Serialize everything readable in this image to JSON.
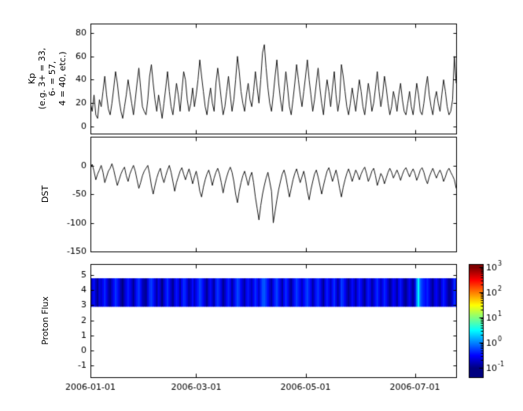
{
  "figure": {
    "background": "#ffffff",
    "x_tick_labels": [
      "2006-01-01",
      "2006-03-01",
      "2006-05-01",
      "2006-07-01"
    ],
    "x_tick_days": [
      0,
      59,
      120,
      181
    ],
    "x_range_days": [
      0,
      204
    ],
    "line_color": "#000000",
    "axis_color": "#000000"
  },
  "chart_data": [
    {
      "type": "line",
      "name": "kp-index",
      "ylabel": "Kp\n(e.g. 3+ = 33,\n6- = 57,\n4 = 40, etc.)",
      "ylim": [
        -6,
        88
      ],
      "yticks": [
        0,
        20,
        40,
        60,
        80
      ],
      "x_start": "2006-01-01",
      "x_end": "2006-07-24",
      "values": [
        20,
        13,
        27,
        10,
        7,
        23,
        17,
        30,
        43,
        27,
        15,
        10,
        20,
        33,
        47,
        37,
        23,
        13,
        7,
        17,
        27,
        40,
        30,
        20,
        10,
        23,
        37,
        50,
        33,
        17,
        13,
        10,
        23,
        43,
        53,
        37,
        23,
        13,
        27,
        17,
        7,
        20,
        33,
        47,
        30,
        17,
        10,
        23,
        37,
        27,
        13,
        30,
        47,
        40,
        23,
        13,
        20,
        33,
        17,
        27,
        40,
        57,
        43,
        30,
        17,
        10,
        23,
        33,
        20,
        13,
        37,
        50,
        37,
        23,
        10,
        17,
        30,
        43,
        27,
        13,
        23,
        40,
        60,
        47,
        30,
        20,
        13,
        27,
        37,
        23,
        17,
        30,
        47,
        33,
        20,
        40,
        63,
        70,
        50,
        33,
        20,
        13,
        27,
        43,
        57,
        37,
        23,
        13,
        30,
        47,
        33,
        17,
        10,
        23,
        37,
        53,
        40,
        27,
        17,
        30,
        43,
        57,
        40,
        27,
        13,
        23,
        37,
        50,
        33,
        20,
        10,
        27,
        40,
        30,
        17,
        33,
        47,
        27,
        13,
        23,
        53,
        43,
        30,
        17,
        10,
        20,
        33,
        23,
        13,
        27,
        40,
        30,
        17,
        10,
        23,
        37,
        27,
        13,
        20,
        33,
        47,
        30,
        17,
        27,
        43,
        33,
        20,
        10,
        17,
        30,
        23,
        13,
        27,
        37,
        23,
        13,
        10,
        20,
        30,
        17,
        10,
        23,
        37,
        27,
        13,
        10,
        20,
        33,
        43,
        27,
        17,
        10,
        23,
        30,
        20,
        13,
        27,
        40,
        30,
        17,
        10,
        13,
        23,
        60,
        37
      ]
    },
    {
      "type": "line",
      "name": "dst-index",
      "ylabel": "DST",
      "ylim": [
        -150,
        50
      ],
      "yticks": [
        0,
        -50,
        -100,
        -150
      ],
      "values": [
        -5,
        2,
        -10,
        -25,
        -15,
        -8,
        0,
        -12,
        -30,
        -20,
        -10,
        -5,
        3,
        -8,
        -22,
        -35,
        -25,
        -15,
        -8,
        -3,
        -18,
        -28,
        -15,
        -7,
        0,
        -10,
        -25,
        -40,
        -30,
        -18,
        -10,
        -5,
        0,
        -15,
        -35,
        -50,
        -35,
        -22,
        -12,
        -5,
        -20,
        -30,
        -18,
        -8,
        0,
        -12,
        -28,
        -45,
        -30,
        -20,
        -10,
        -4,
        -15,
        -25,
        -15,
        -6,
        -18,
        -32,
        -20,
        -10,
        -25,
        -45,
        -55,
        -38,
        -25,
        -15,
        -8,
        -20,
        -35,
        -22,
        -12,
        -5,
        -15,
        -30,
        -48,
        -32,
        -20,
        -10,
        -3,
        -12,
        -28,
        -50,
        -65,
        -45,
        -30,
        -18,
        -10,
        -22,
        -35,
        -20,
        -12,
        -30,
        -55,
        -75,
        -95,
        -70,
        -50,
        -35,
        -22,
        -12,
        -28,
        -45,
        -100,
        -80,
        -60,
        -42,
        -28,
        -15,
        -8,
        -20,
        -38,
        -55,
        -40,
        -25,
        -14,
        -6,
        -18,
        -30,
        -20,
        -10,
        -25,
        -45,
        -60,
        -42,
        -28,
        -15,
        -8,
        -20,
        -35,
        -50,
        -35,
        -22,
        -10,
        -4,
        -15,
        -28,
        -18,
        -8,
        -22,
        -40,
        -55,
        -38,
        -25,
        -14,
        -6,
        -16,
        -28,
        -18,
        -8,
        -15,
        -25,
        -15,
        -8,
        -3,
        -14,
        -28,
        -20,
        -10,
        -5,
        -18,
        -35,
        -25,
        -14,
        -20,
        -32,
        -22,
        -12,
        -5,
        -12,
        -22,
        -15,
        -8,
        -16,
        -26,
        -16,
        -8,
        -4,
        -12,
        -20,
        -12,
        -6,
        -14,
        -26,
        -18,
        -8,
        -4,
        -12,
        -24,
        -32,
        -20,
        -12,
        -5,
        -14,
        -22,
        -14,
        -8,
        -16,
        -28,
        -20,
        -10,
        -5,
        -12,
        -18,
        -25,
        -40
      ]
    },
    {
      "type": "heatmap",
      "name": "proton-flux",
      "ylabel": "Proton Flux",
      "ylim": [
        -1.8,
        5.75
      ],
      "yticks": [
        -1,
        0,
        1,
        2,
        3,
        4,
        5
      ],
      "band": [
        2.9,
        4.8
      ],
      "scale": "log",
      "clim": [
        0.1,
        1000
      ],
      "values": [
        0.15,
        0.22,
        0.35,
        0.18,
        0.12,
        0.25,
        0.2,
        0.3,
        0.45,
        0.28,
        0.16,
        0.12,
        0.2,
        0.33,
        0.5,
        0.38,
        0.24,
        0.14,
        0.1,
        0.18,
        0.28,
        0.4,
        0.3,
        0.2,
        0.12,
        0.24,
        0.38,
        0.52,
        0.34,
        0.18,
        0.14,
        0.12,
        0.24,
        0.44,
        0.55,
        0.38,
        0.24,
        0.14,
        0.28,
        0.18,
        0.1,
        0.2,
        0.34,
        0.48,
        0.3,
        0.18,
        0.12,
        0.24,
        0.38,
        0.28,
        0.14,
        0.3,
        0.48,
        0.4,
        0.24,
        0.14,
        0.2,
        0.34,
        0.18,
        0.28,
        0.4,
        0.58,
        0.44,
        0.3,
        0.18,
        0.12,
        0.24,
        0.34,
        0.2,
        0.14,
        0.38,
        0.5,
        0.38,
        0.24,
        0.12,
        0.18,
        0.3,
        0.44,
        0.28,
        0.14,
        0.24,
        0.4,
        0.6,
        0.48,
        0.3,
        0.2,
        0.14,
        0.28,
        0.38,
        0.24,
        0.18,
        0.3,
        0.48,
        0.34,
        0.2,
        0.4,
        0.64,
        0.7,
        0.5,
        0.34,
        0.2,
        0.14,
        0.28,
        0.44,
        0.58,
        0.38,
        0.24,
        0.14,
        0.3,
        0.48,
        0.34,
        0.18,
        0.12,
        0.24,
        0.38,
        0.54,
        0.4,
        0.28,
        0.18,
        0.3,
        0.44,
        0.58,
        0.4,
        0.28,
        0.14,
        0.24,
        0.38,
        0.5,
        0.34,
        0.2,
        0.12,
        0.28,
        0.4,
        0.3,
        0.18,
        0.34,
        0.48,
        0.28,
        0.14,
        0.24,
        0.54,
        0.44,
        0.3,
        0.18,
        0.12,
        0.2,
        0.34,
        0.24,
        0.14,
        0.28,
        0.4,
        0.3,
        0.18,
        0.12,
        0.24,
        0.38,
        0.28,
        0.14,
        0.2,
        0.34,
        0.48,
        0.3,
        0.18,
        0.28,
        0.44,
        0.34,
        0.2,
        0.12,
        0.18,
        0.3,
        0.24,
        0.14,
        0.28,
        0.38,
        0.24,
        0.14,
        0.12,
        0.2,
        0.3,
        0.18,
        0.12,
        0.24,
        1,
        3,
        0.8,
        0.5,
        0.4,
        0.33,
        0.43,
        0.28,
        0.18,
        0.12,
        0.24,
        0.3,
        0.2,
        0.14,
        0.28,
        0.4,
        0.3,
        0.18,
        0.12,
        0.14,
        0.24,
        0.5,
        0.3
      ]
    }
  ],
  "colorbar": {
    "colormap": "jet",
    "scale": "log",
    "clim": [
      0.1,
      1000
    ],
    "labels": [
      "10^3",
      "10^2",
      "10^1",
      "10^0",
      "10^-1"
    ],
    "base": "10",
    "exponents": [
      "3",
      "2",
      "1",
      "0",
      "-1"
    ]
  }
}
